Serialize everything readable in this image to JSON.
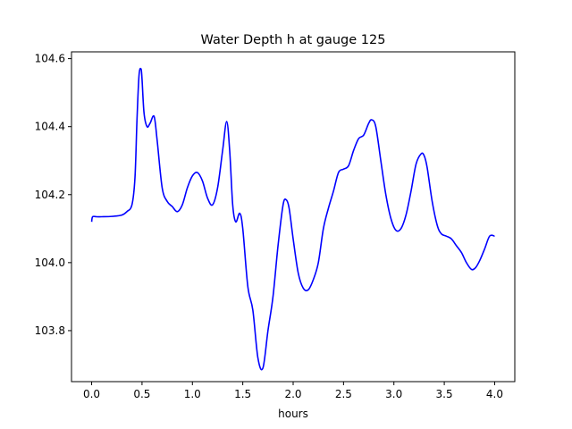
{
  "chart_data": {
    "type": "line",
    "title": "Water Depth h at gauge 125",
    "xlabel": "hours",
    "ylabel": "",
    "xlim": [
      -0.2,
      4.2
    ],
    "ylim": [
      103.65,
      104.62
    ],
    "x_ticks": [
      0.0,
      0.5,
      1.0,
      1.5,
      2.0,
      2.5,
      3.0,
      3.5,
      4.0
    ],
    "x_tick_labels": [
      "0.0",
      "0.5",
      "1.0",
      "1.5",
      "2.0",
      "2.5",
      "3.0",
      "3.5",
      "4.0"
    ],
    "y_ticks": [
      103.8,
      104.0,
      104.2,
      104.4,
      104.6
    ],
    "y_tick_labels": [
      "103.8",
      "104.0",
      "104.2",
      "104.4",
      "104.6"
    ],
    "grid": false,
    "legend": "none",
    "series": [
      {
        "color": "#0000ff",
        "x": [
          0.0,
          0.01,
          0.05,
          0.1,
          0.2,
          0.3,
          0.35,
          0.4,
          0.43,
          0.45,
          0.47,
          0.49,
          0.5,
          0.52,
          0.55,
          0.58,
          0.62,
          0.65,
          0.7,
          0.75,
          0.8,
          0.85,
          0.9,
          0.95,
          1.0,
          1.05,
          1.1,
          1.15,
          1.2,
          1.25,
          1.3,
          1.34,
          1.37,
          1.4,
          1.43,
          1.47,
          1.5,
          1.55,
          1.6,
          1.65,
          1.7,
          1.75,
          1.8,
          1.85,
          1.9,
          1.93,
          1.96,
          2.0,
          2.05,
          2.1,
          2.15,
          2.2,
          2.25,
          2.3,
          2.35,
          2.4,
          2.45,
          2.5,
          2.55,
          2.6,
          2.65,
          2.7,
          2.75,
          2.78,
          2.82,
          2.87,
          2.92,
          2.97,
          3.02,
          3.07,
          3.12,
          3.17,
          3.22,
          3.27,
          3.3,
          3.33,
          3.38,
          3.43,
          3.47,
          3.52,
          3.57,
          3.62,
          3.67,
          3.72,
          3.77,
          3.81,
          3.85,
          3.9,
          3.95,
          4.0
        ],
        "y": [
          104.12,
          104.135,
          104.135,
          104.135,
          104.136,
          104.14,
          104.15,
          104.17,
          104.25,
          104.42,
          104.55,
          104.57,
          104.54,
          104.44,
          104.4,
          104.41,
          104.43,
          104.36,
          104.22,
          104.18,
          104.165,
          104.15,
          104.17,
          104.22,
          104.255,
          104.265,
          104.24,
          104.19,
          104.17,
          104.22,
          104.33,
          104.415,
          104.33,
          104.17,
          104.12,
          104.145,
          104.1,
          103.93,
          103.86,
          103.72,
          103.69,
          103.8,
          103.9,
          104.05,
          104.17,
          104.185,
          104.16,
          104.07,
          103.97,
          103.925,
          103.92,
          103.95,
          104.0,
          104.1,
          104.16,
          104.21,
          104.265,
          104.275,
          104.285,
          104.33,
          104.365,
          104.375,
          104.41,
          104.42,
          104.4,
          104.3,
          104.2,
          104.13,
          104.095,
          104.1,
          104.14,
          104.21,
          104.29,
          104.32,
          104.315,
          104.28,
          104.18,
          104.11,
          104.085,
          104.078,
          104.07,
          104.05,
          104.03,
          104.0,
          103.98,
          103.985,
          104.005,
          104.04,
          104.078,
          104.078
        ]
      }
    ]
  }
}
